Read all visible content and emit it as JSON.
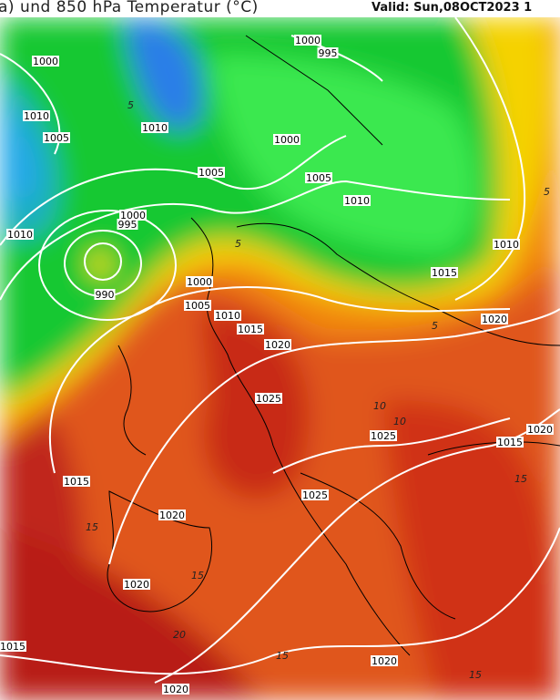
{
  "header": {
    "title": "a) und 850 hPa Temperatur (°C)",
    "valid": "Valid: Sun,08OCT2023 1"
  },
  "colors": {
    "deep_red": "#b81e14",
    "red": "#d8391a",
    "orange": "#ec6a12",
    "light_orange": "#f59a0c",
    "yellow": "#f5d200",
    "green": "#10c830",
    "bright_green": "#2ee84a",
    "teal": "#18c0a0",
    "cyan": "#1ab4e0",
    "blue": "#2a7ee8",
    "isobar": "#ffffff",
    "isotherm": "#000000"
  },
  "isobar_labels": [
    "1000",
    "995",
    "1000",
    "1010",
    "1005",
    "1010",
    "1000",
    "1005",
    "1005",
    "1010",
    "1010",
    "1000",
    "995",
    "990",
    "1010",
    "1015",
    "1000",
    "1005",
    "1010",
    "1015",
    "1020",
    "1020",
    "1025",
    "1025",
    "1015",
    "1020",
    "1015",
    "1025",
    "1020",
    "1020",
    "1015",
    "1020",
    "1020"
  ],
  "isotherm_labels": [
    "5",
    "10",
    "5",
    "5",
    "10",
    "15",
    "15",
    "20",
    "15",
    "15",
    "15",
    "5"
  ]
}
